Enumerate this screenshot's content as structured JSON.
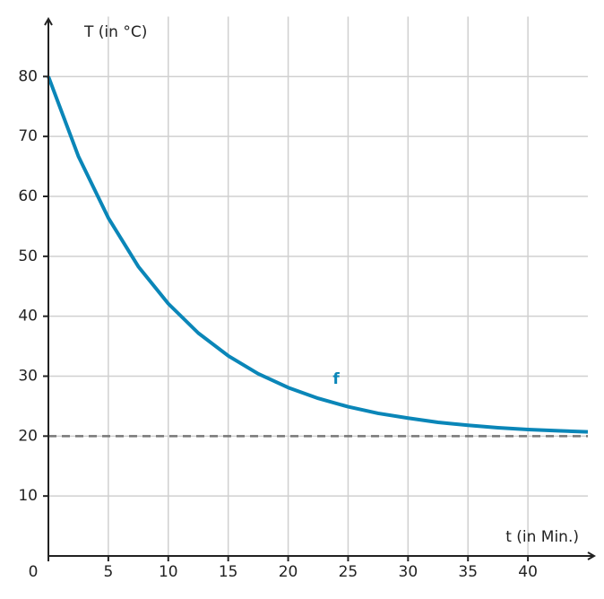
{
  "chart_data": {
    "type": "line",
    "x_label": "t (in Min.)",
    "y_label": "T (in °C)",
    "x": [
      0,
      2.5,
      5,
      7.5,
      10,
      12.5,
      15,
      17.5,
      20,
      22.5,
      25,
      27.5,
      30,
      32.5,
      35,
      37.5,
      40,
      42.5,
      45
    ],
    "series": [
      {
        "name": "f",
        "color": "#0a86b8",
        "values": [
          80,
          66.7,
          56.4,
          48.3,
          42.1,
          37.2,
          33.4,
          30.4,
          28.1,
          26.3,
          24.9,
          23.8,
          23.0,
          22.3,
          21.8,
          21.4,
          21.1,
          20.9,
          20.7
        ]
      }
    ],
    "asymptote": 20,
    "asymptote_color": "#777777",
    "xlim": [
      0,
      45
    ],
    "ylim": [
      0,
      90
    ],
    "xticks": [
      0,
      5,
      10,
      15,
      20,
      25,
      30,
      35,
      40
    ],
    "yticks": [
      10,
      20,
      30,
      40,
      50,
      60,
      70,
      80
    ],
    "grid": true
  }
}
